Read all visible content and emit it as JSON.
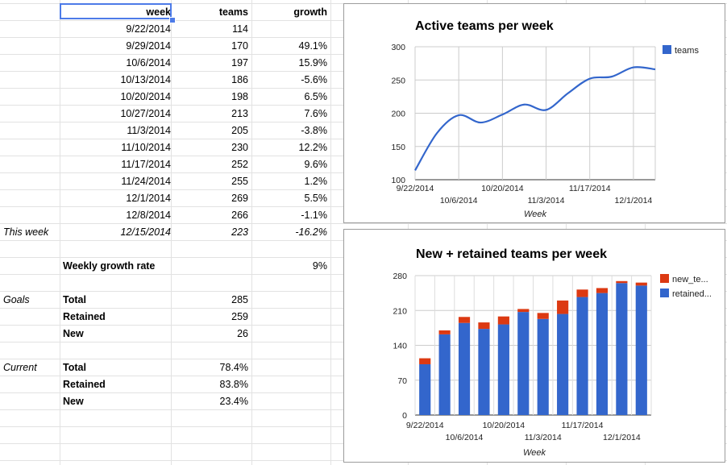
{
  "sheet": {
    "headers": {
      "week": "week",
      "teams": "teams",
      "growth": "growth"
    },
    "rows": [
      {
        "week": "9/22/2014",
        "teams": "114",
        "growth": ""
      },
      {
        "week": "9/29/2014",
        "teams": "170",
        "growth": "49.1%"
      },
      {
        "week": "10/6/2014",
        "teams": "197",
        "growth": "15.9%"
      },
      {
        "week": "10/13/2014",
        "teams": "186",
        "growth": "-5.6%"
      },
      {
        "week": "10/20/2014",
        "teams": "198",
        "growth": "6.5%"
      },
      {
        "week": "10/27/2014",
        "teams": "213",
        "growth": "7.6%"
      },
      {
        "week": "11/3/2014",
        "teams": "205",
        "growth": "-3.8%"
      },
      {
        "week": "11/10/2014",
        "teams": "230",
        "growth": "12.2%"
      },
      {
        "week": "11/17/2014",
        "teams": "252",
        "growth": "9.6%"
      },
      {
        "week": "11/24/2014",
        "teams": "255",
        "growth": "1.2%"
      },
      {
        "week": "12/1/2014",
        "teams": "269",
        "growth": "5.5%"
      },
      {
        "week": "12/8/2014",
        "teams": "266",
        "growth": "-1.1%"
      }
    ],
    "this_week": {
      "label": "This week",
      "week": "12/15/2014",
      "teams": "223",
      "growth": "-16.2%"
    },
    "weekly_growth": {
      "label": "Weekly growth rate",
      "value": "9%"
    },
    "goals": {
      "label": "Goals",
      "total_label": "Total",
      "total": "285",
      "retained_label": "Retained",
      "retained": "259",
      "new_label": "New",
      "new": "26"
    },
    "current": {
      "label": "Current",
      "total_label": "Total",
      "total": "78.4%",
      "retained_label": "Retained",
      "retained": "83.8%",
      "new_label": "New",
      "new": "23.4%"
    }
  },
  "chart_data": [
    {
      "type": "line",
      "title": "Active teams per week",
      "xlabel": "Week",
      "ylabel": "",
      "ylim": [
        100,
        300
      ],
      "yticks": [
        "100",
        "150",
        "200",
        "250",
        "300"
      ],
      "x": [
        "9/22/2014",
        "9/29/2014",
        "10/6/2014",
        "10/13/2014",
        "10/20/2014",
        "10/27/2014",
        "11/3/2014",
        "11/10/2014",
        "11/17/2014",
        "11/24/2014",
        "12/1/2014",
        "12/8/2014"
      ],
      "xtick_labels_upper": [
        "9/22/2014",
        "10/20/2014",
        "11/17/2014"
      ],
      "xtick_labels_lower": [
        "10/6/2014",
        "11/3/2014",
        "12/1/2014"
      ],
      "series": [
        {
          "name": "teams",
          "color": "#3366cc",
          "values": [
            114,
            170,
            197,
            186,
            198,
            213,
            205,
            230,
            252,
            255,
            269,
            266
          ]
        }
      ],
      "legend": "right",
      "grid": true
    },
    {
      "type": "bar",
      "stacked": true,
      "title": "New + retained teams per week",
      "xlabel": "Week",
      "ylabel": "",
      "ylim": [
        0,
        280
      ],
      "yticks": [
        "0",
        "70",
        "140",
        "210",
        "280"
      ],
      "x": [
        "9/22/2014",
        "9/29/2014",
        "10/6/2014",
        "10/13/2014",
        "10/20/2014",
        "10/27/2014",
        "11/3/2014",
        "11/10/2014",
        "11/17/2014",
        "11/24/2014",
        "12/1/2014",
        "12/8/2014"
      ],
      "xtick_labels_upper": [
        "9/22/2014",
        "10/20/2014",
        "11/17/2014"
      ],
      "xtick_labels_lower": [
        "10/6/2014",
        "11/3/2014",
        "12/1/2014"
      ],
      "series": [
        {
          "name": "retained...",
          "color": "#3366cc",
          "values": [
            102,
            162,
            185,
            173,
            182,
            207,
            193,
            203,
            237,
            245,
            265,
            260
          ]
        },
        {
          "name": "new_te...",
          "color": "#dc3912",
          "values": [
            12,
            8,
            12,
            13,
            16,
            6,
            12,
            27,
            15,
            10,
            4,
            6
          ]
        }
      ],
      "legend": "right",
      "grid": true
    }
  ]
}
